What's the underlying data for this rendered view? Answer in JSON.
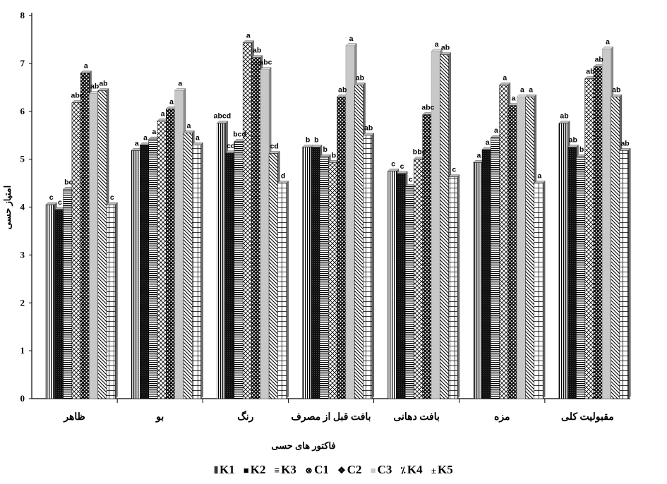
{
  "chart_data": {
    "type": "bar",
    "xlabel": "فاکتور های حسی",
    "ylabel": "امتیاز حسی",
    "ylim": [
      0,
      8
    ],
    "yticks": [
      "0",
      "1",
      "2",
      "3",
      "4",
      "5",
      "6",
      "7",
      "8"
    ],
    "categories": [
      "ظاهر",
      "بو",
      "رنگ",
      "بافت قبل از مصرف",
      "بافت دهانی",
      "مزه",
      "مقبولیت کلی"
    ],
    "legend_position": "bottom",
    "grid": false,
    "series": [
      {
        "name": "K1",
        "values": [
          4.05,
          5.18,
          5.75,
          5.25,
          4.75,
          4.93,
          5.75
        ],
        "letters": [
          "c",
          "a",
          "abcd",
          "b",
          "c",
          "a",
          "ab"
        ]
      },
      {
        "name": "K2",
        "values": [
          3.95,
          5.3,
          5.13,
          5.25,
          4.7,
          5.2,
          5.25
        ],
        "letters": [
          "c",
          "a",
          "cd",
          "b",
          "c",
          "a",
          "ab"
        ]
      },
      {
        "name": "K3",
        "values": [
          4.37,
          5.42,
          5.37,
          5.05,
          4.43,
          5.45,
          5.05
        ],
        "letters": [
          "bc",
          "a",
          "bcd",
          "b",
          "c",
          "a",
          "b"
        ]
      },
      {
        "name": "C1",
        "values": [
          6.18,
          5.8,
          7.43,
          4.93,
          5.0,
          6.55,
          6.68
        ],
        "letters": [
          "abc",
          "a",
          "a",
          "b",
          "bbc",
          "a",
          "ab"
        ]
      },
      {
        "name": "C2",
        "values": [
          6.8,
          6.05,
          7.12,
          6.3,
          5.93,
          6.12,
          6.93
        ],
        "letters": [
          "a",
          "a",
          "ab",
          "ab",
          "abc",
          "a",
          "ab"
        ]
      },
      {
        "name": "C3",
        "values": [
          6.37,
          6.43,
          6.87,
          7.37,
          7.25,
          6.3,
          7.3
        ],
        "letters": [
          "ab",
          "a",
          "abc",
          "a",
          "a",
          "a",
          "a"
        ]
      },
      {
        "name": "K4",
        "values": [
          6.43,
          5.55,
          5.12,
          6.55,
          7.18,
          6.3,
          6.3
        ],
        "letters": [
          "ab",
          "a",
          "cd",
          "ab",
          "ab",
          "a",
          "ab"
        ]
      },
      {
        "name": "K5",
        "values": [
          4.05,
          5.3,
          4.5,
          5.5,
          4.63,
          4.5,
          5.18
        ],
        "letters": [
          "c",
          "a",
          "d",
          "ab",
          "c",
          "a",
          "ab"
        ]
      }
    ]
  },
  "legend": {
    "items": [
      {
        "symbol": "⦀",
        "label": "K1"
      },
      {
        "symbol": "■",
        "label": "K2"
      },
      {
        "symbol": "≡",
        "label": "K3"
      },
      {
        "symbol": "⊗",
        "label": "C1"
      },
      {
        "symbol": "❖",
        "label": "C2"
      },
      {
        "symbol": "■",
        "label": "C3"
      },
      {
        "symbol": "⁒",
        "label": "K4"
      },
      {
        "symbol": "±",
        "label": "K5"
      }
    ]
  },
  "colors": {
    "C3_fill": "#c8c8c8",
    "C3_side": "#8c8c8c",
    "K2_fill": "#111111",
    "axis": "#000000"
  }
}
